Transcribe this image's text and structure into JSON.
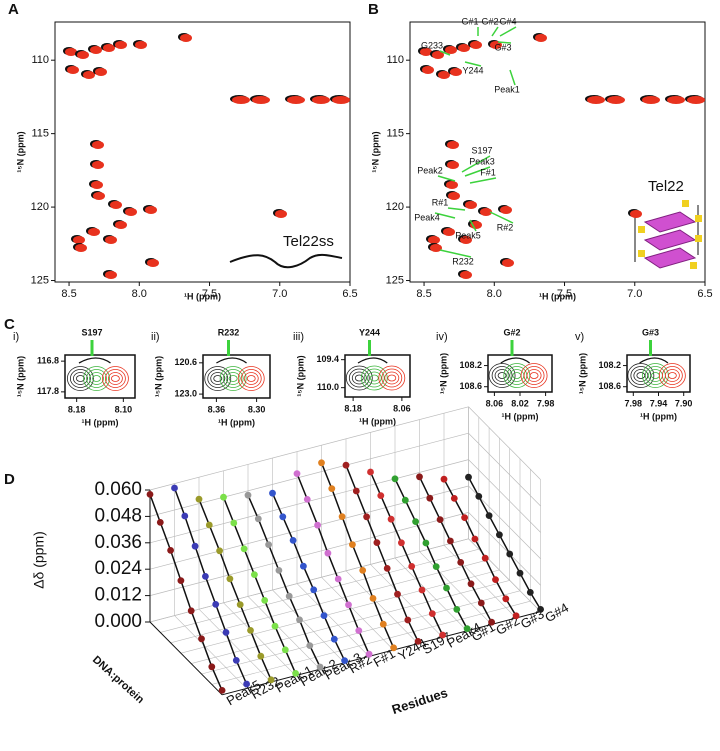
{
  "panels": {
    "A": {
      "label": "A",
      "xlabel": "¹H (ppm)",
      "ylabel": "¹⁵N (ppm)",
      "xlim": [
        8.6,
        6.5
      ],
      "ylim": [
        107.4,
        125.1
      ],
      "xticks": [
        8.5,
        {
          "value": 8,
          "label": "8.0"
        },
        7.5,
        {
          "value": 7,
          "label": "7.0"
        },
        6.5
      ],
      "yticks": [
        110,
        115,
        120,
        125
      ],
      "annotation": "Tel22ss"
    },
    "B": {
      "label": "B",
      "xlabel": "¹H (ppm)",
      "ylabel": "¹⁵N (ppm)",
      "xlim": [
        8.6,
        6.5
      ],
      "ylim": [
        107.4,
        125.1
      ],
      "xticks": [
        8.5,
        {
          "value": 8,
          "label": "8.0"
        },
        7.5,
        {
          "value": 7,
          "label": "7.0"
        },
        6.5
      ],
      "yticks": [
        110,
        115,
        120,
        125
      ],
      "annotation": "Tel22",
      "peak_labels": [
        "G#1",
        "G#2",
        "G#4",
        "G233",
        "G#3",
        "Y244",
        "Peak1",
        "S197",
        "Peak3",
        "F#1",
        "Peak2",
        "R#1",
        "Peak4",
        "R#2",
        "Peak5",
        "R232"
      ]
    },
    "C": {
      "label": "C",
      "xlabel": "¹H (ppm)",
      "ylabel": "¹⁵N (ppm)",
      "insets": [
        {
          "index": "i)",
          "residue": "S197",
          "xlim": [
            8.2,
            8.08
          ],
          "ylim": [
            116.6,
            118.0
          ],
          "xticks": [
            8.18,
            {
              "value": 8.1,
              "label": "8.10"
            }
          ],
          "yticks": [
            116.8,
            117.8
          ]
        },
        {
          "index": "ii)",
          "residue": "R232",
          "xlim": [
            8.38,
            8.28
          ],
          "ylim": [
            120.0,
            123.3
          ],
          "xticks": [
            8.36,
            {
              "value": 8.3,
              "label": "8.30"
            }
          ],
          "yticks": [
            120.6,
            {
              "value": 123,
              "label": "123.0"
            }
          ]
        },
        {
          "index": "iii)",
          "residue": "Y244",
          "xlim": [
            8.2,
            8.04
          ],
          "ylim": [
            109.3,
            110.2
          ],
          "xticks": [
            8.18,
            8.06
          ],
          "yticks": [
            109.4,
            {
              "value": 110,
              "label": "110.0"
            }
          ]
        },
        {
          "index": "iv)",
          "residue": "G#2",
          "xlim": [
            8.07,
            7.97
          ],
          "ylim": [
            108.0,
            108.7
          ],
          "xticks": [
            8.06,
            8.02,
            7.98
          ],
          "yticks": [
            108.2,
            108.6
          ]
        },
        {
          "index": "v)",
          "residue": "G#3",
          "xlim": [
            7.99,
            7.89
          ],
          "ylim": [
            108.0,
            108.7
          ],
          "xticks": [
            7.98,
            7.94,
            {
              "value": 7.9,
              "label": "7.90"
            }
          ],
          "yticks": [
            108.2,
            108.6
          ]
        }
      ]
    }
  },
  "chart_data": {
    "type": "line3d",
    "label": "D",
    "ylabel": "Δδ (ppm)",
    "depth_label": "DNA:protein",
    "xlabel": "Residues",
    "ylim": [
      0,
      0.06
    ],
    "yticks": [
      {
        "value": 0,
        "label": "0.000"
      },
      {
        "value": 0.012,
        "label": "0.012"
      },
      {
        "value": 0.024,
        "label": "0.024"
      },
      {
        "value": 0.036,
        "label": "0.036"
      },
      {
        "value": 0.048,
        "label": "0.048"
      },
      {
        "value": 0.06,
        "label": "0.060"
      }
    ],
    "grid": true,
    "series": [
      {
        "name": "Peak5",
        "color": "#8b1a1a",
        "values": [
          0.058,
          0.05,
          0.042,
          0.033,
          0.024,
          0.016,
          0.008,
          0.002
        ]
      },
      {
        "name": "R232",
        "color": "#3b3bb5",
        "values": [
          0.058,
          0.05,
          0.041,
          0.032,
          0.024,
          0.016,
          0.008,
          0.002
        ]
      },
      {
        "name": "Peak 1",
        "color": "#9a9a2a",
        "values": [
          0.05,
          0.043,
          0.036,
          0.028,
          0.021,
          0.014,
          0.007,
          0.001
        ]
      },
      {
        "name": "Peak 2",
        "color": "#7be04a",
        "values": [
          0.048,
          0.041,
          0.034,
          0.027,
          0.02,
          0.013,
          0.007,
          0.001
        ]
      },
      {
        "name": "Peak 3",
        "color": "#999999",
        "values": [
          0.046,
          0.04,
          0.033,
          0.026,
          0.019,
          0.013,
          0.006,
          0.001
        ]
      },
      {
        "name": "R#2",
        "color": "#3355cc",
        "values": [
          0.044,
          0.038,
          0.032,
          0.025,
          0.019,
          0.012,
          0.006,
          0.001
        ]
      },
      {
        "name": "F#1",
        "color": "#d070d0",
        "values": [
          0.05,
          0.043,
          0.036,
          0.028,
          0.021,
          0.014,
          0.007,
          0.001
        ]
      },
      {
        "name": "Y244",
        "color": "#e08020",
        "values": [
          0.052,
          0.045,
          0.037,
          0.029,
          0.022,
          0.014,
          0.007,
          0.001
        ]
      },
      {
        "name": "S197",
        "color": "#a02020",
        "values": [
          0.048,
          0.041,
          0.034,
          0.027,
          0.02,
          0.013,
          0.006,
          0.001
        ]
      },
      {
        "name": "Peak4",
        "color": "#d03030",
        "values": [
          0.042,
          0.036,
          0.03,
          0.024,
          0.018,
          0.012,
          0.006,
          0.001
        ]
      },
      {
        "name": "G#1",
        "color": "#30a030",
        "values": [
          0.036,
          0.031,
          0.026,
          0.021,
          0.015,
          0.01,
          0.005,
          0.001
        ]
      },
      {
        "name": "G#2",
        "color": "#8b1a1a",
        "values": [
          0.034,
          0.029,
          0.024,
          0.019,
          0.014,
          0.009,
          0.005,
          0.001
        ]
      },
      {
        "name": "G#3",
        "color": "#c02020",
        "values": [
          0.03,
          0.026,
          0.022,
          0.017,
          0.013,
          0.008,
          0.004,
          0.001
        ]
      },
      {
        "name": "G#4",
        "color": "#222222",
        "values": [
          0.028,
          0.024,
          0.02,
          0.016,
          0.012,
          0.008,
          0.004,
          0.001
        ]
      }
    ]
  }
}
